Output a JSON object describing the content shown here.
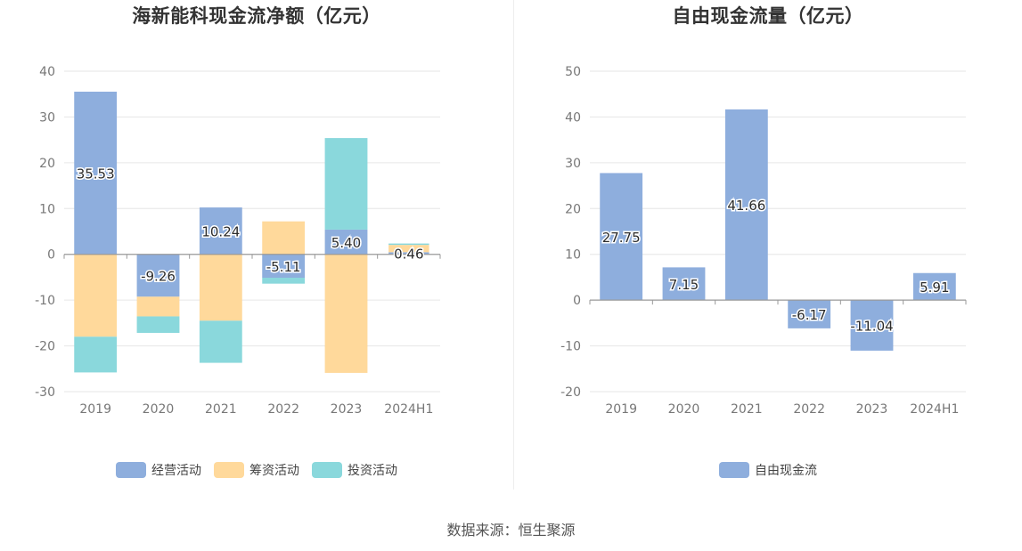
{
  "source": "数据来源：恒生聚源",
  "colors": {
    "operating": "#8eaedd",
    "financing": "#ffd99b",
    "investing": "#8ad8dc",
    "fcf": "#8eaedd",
    "grid": "#e6e6e6",
    "axis": "#999999"
  },
  "chart_data": [
    {
      "type": "bar",
      "stacked": true,
      "title": "海新能科现金流净额（亿元）",
      "categories": [
        "2019",
        "2020",
        "2021",
        "2022",
        "2023",
        "2024H1"
      ],
      "ylim": [
        -30,
        40
      ],
      "yticks": [
        40,
        30,
        20,
        10,
        0,
        -10,
        -20,
        -30
      ],
      "grid": true,
      "legend_position": "bottom",
      "series": [
        {
          "name": "经营活动",
          "color_key": "operating",
          "values": [
            35.53,
            -9.26,
            10.24,
            -5.11,
            5.4,
            0.46
          ]
        },
        {
          "name": "筹资活动",
          "color_key": "financing",
          "values": [
            -18.0,
            -4.3,
            -14.5,
            7.2,
            -25.9,
            1.6
          ]
        },
        {
          "name": "投资活动",
          "color_key": "investing",
          "values": [
            -7.8,
            -3.6,
            -9.2,
            -1.3,
            20.0,
            0.3
          ]
        }
      ],
      "data_labels": [
        "35.53",
        "-9.26",
        "10.24",
        "-5.11",
        "5.40",
        "0.46"
      ]
    },
    {
      "type": "bar",
      "title": "自由现金流量（亿元）",
      "categories": [
        "2019",
        "2020",
        "2021",
        "2022",
        "2023",
        "2024H1"
      ],
      "ylim": [
        -20,
        50
      ],
      "yticks": [
        50,
        40,
        30,
        20,
        10,
        0,
        -10,
        -20
      ],
      "grid": true,
      "legend_position": "bottom",
      "series": [
        {
          "name": "自由现金流",
          "color_key": "fcf",
          "values": [
            27.75,
            7.15,
            41.66,
            -6.17,
            -11.04,
            5.91
          ]
        }
      ],
      "data_labels": [
        "27.75",
        "7.15",
        "41.66",
        "-6.17",
        "-11.04",
        "5.91"
      ]
    }
  ]
}
